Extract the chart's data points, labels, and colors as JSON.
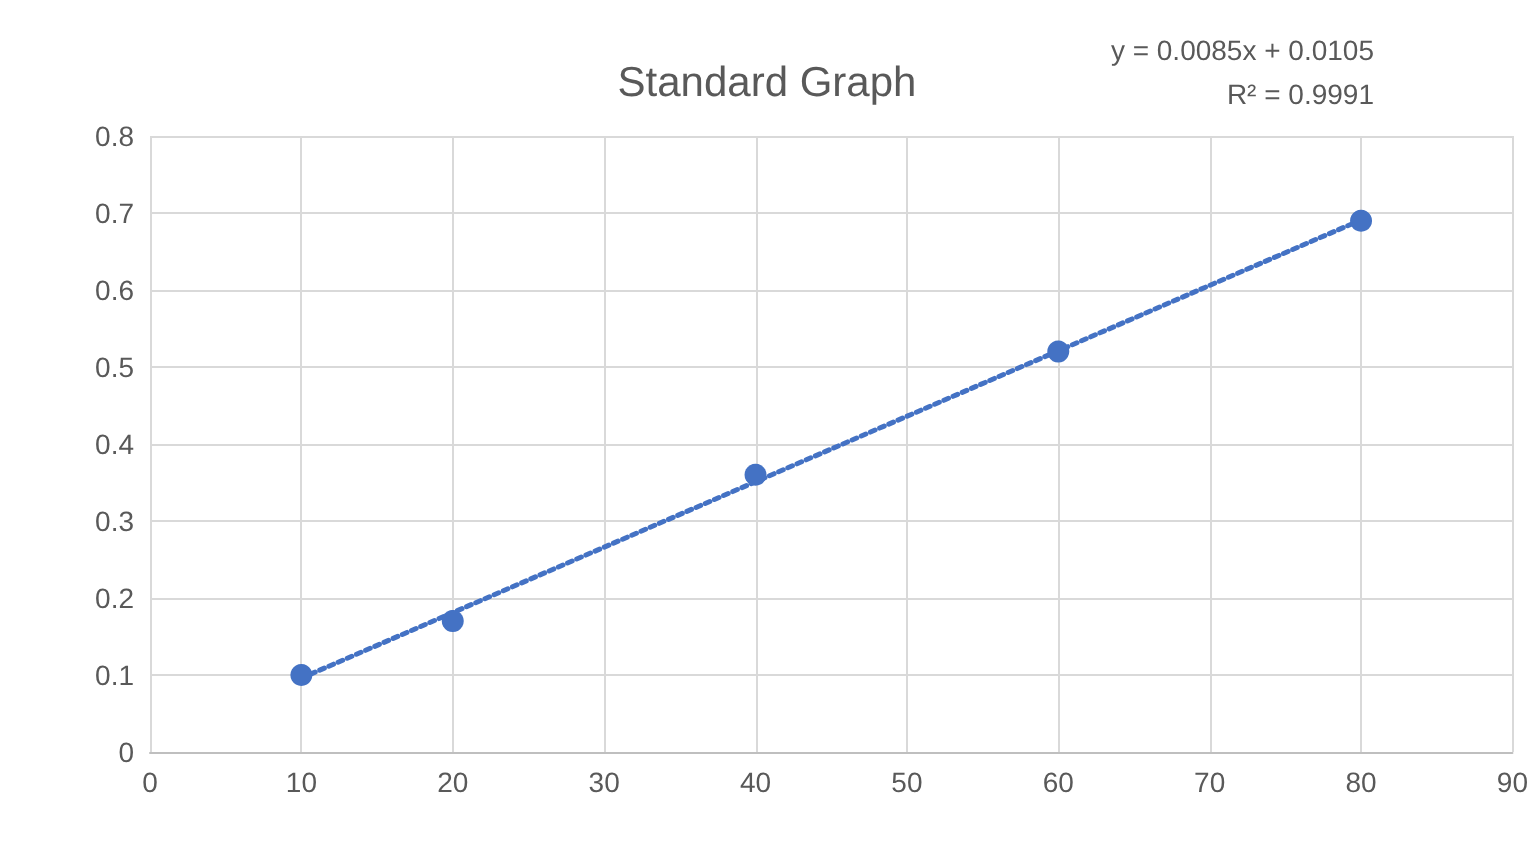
{
  "chart_data": {
    "type": "scatter",
    "title": "Standard Graph",
    "annotations": [
      "y = 0.0085x + 0.0105",
      "R² = 0.9991"
    ],
    "series": [
      {
        "color": "#4472c4",
        "marker": "circle",
        "x": [
          10,
          20,
          40,
          60,
          80
        ],
        "values": [
          0.1,
          0.17,
          0.36,
          0.52,
          0.69
        ]
      },
      {
        "type": "line",
        "color": "#4472c4",
        "marker": "none",
        "line_style": "dotted",
        "x": [
          10,
          80
        ],
        "values": [
          0.096,
          0.691
        ]
      }
    ],
    "xlim": [
      0,
      90
    ],
    "xticks": [
      0,
      10,
      20,
      30,
      40,
      50,
      60,
      70,
      80,
      90
    ],
    "ylim": [
      0,
      0.8
    ],
    "yticks": [
      0,
      0.1,
      0.2,
      0.3,
      0.4,
      0.5,
      0.6,
      0.7,
      0.8
    ],
    "grid": true
  }
}
